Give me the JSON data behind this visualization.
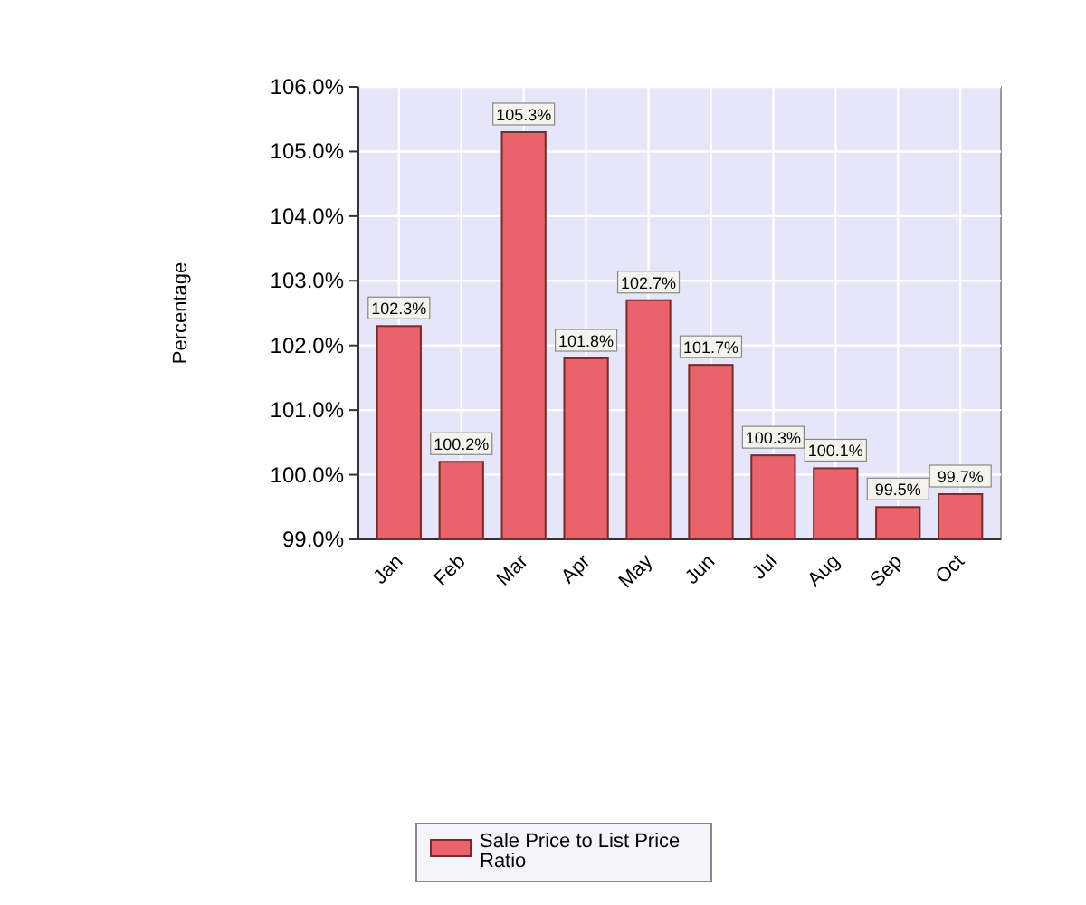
{
  "chart_data": {
    "type": "bar",
    "ylabel": "Percentage",
    "categories": [
      "Jan",
      "Feb",
      "Mar",
      "Apr",
      "May",
      "Jun",
      "Jul",
      "Aug",
      "Sep",
      "Oct"
    ],
    "series": [
      {
        "name": "Sale Price to List Price Ratio",
        "color": "#e8636b",
        "values": [
          102.3,
          100.2,
          105.3,
          101.8,
          102.7,
          101.7,
          100.3,
          100.1,
          99.5,
          99.7
        ],
        "value_labels": [
          "102.3%",
          "100.2%",
          "105.3%",
          "101.8%",
          "102.7%",
          "101.7%",
          "100.3%",
          "100.1%",
          "99.5%",
          "99.7%"
        ]
      }
    ],
    "ylim": [
      99,
      106
    ],
    "yticks": [
      {
        "value": 99,
        "label": "99.0%"
      },
      {
        "value": 100,
        "label": "100.0%"
      },
      {
        "value": 101,
        "label": "101.0%"
      },
      {
        "value": 102,
        "label": "102.0%"
      },
      {
        "value": 103,
        "label": "103.0%"
      },
      {
        "value": 104,
        "label": "104.0%"
      },
      {
        "value": 105,
        "label": "105.0%"
      },
      {
        "value": 106,
        "label": "106.0%"
      }
    ],
    "grid": true,
    "legend": "bottom"
  }
}
